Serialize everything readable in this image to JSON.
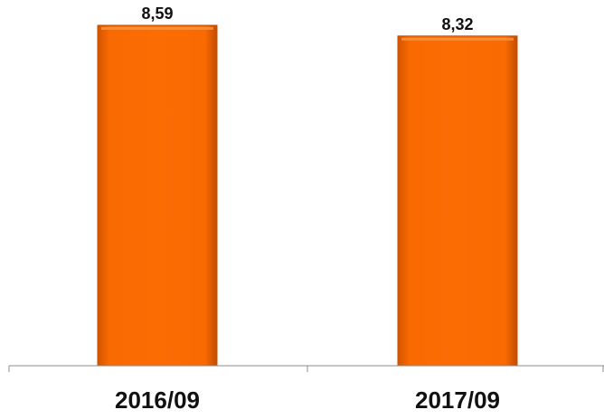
{
  "chart_data": {
    "type": "bar",
    "categories": [
      "2016/09",
      "2017/09"
    ],
    "values": [
      8.59,
      8.32
    ],
    "value_labels": [
      "8,59",
      "8,32"
    ],
    "ylim": [
      0,
      8.59
    ],
    "grid": false,
    "legend": "none",
    "colors": {
      "bar": "#f96a02",
      "bar_edge": "#c84f00",
      "bar_highlight": "#ff9a4a",
      "axis": "#8c8c8c"
    }
  }
}
